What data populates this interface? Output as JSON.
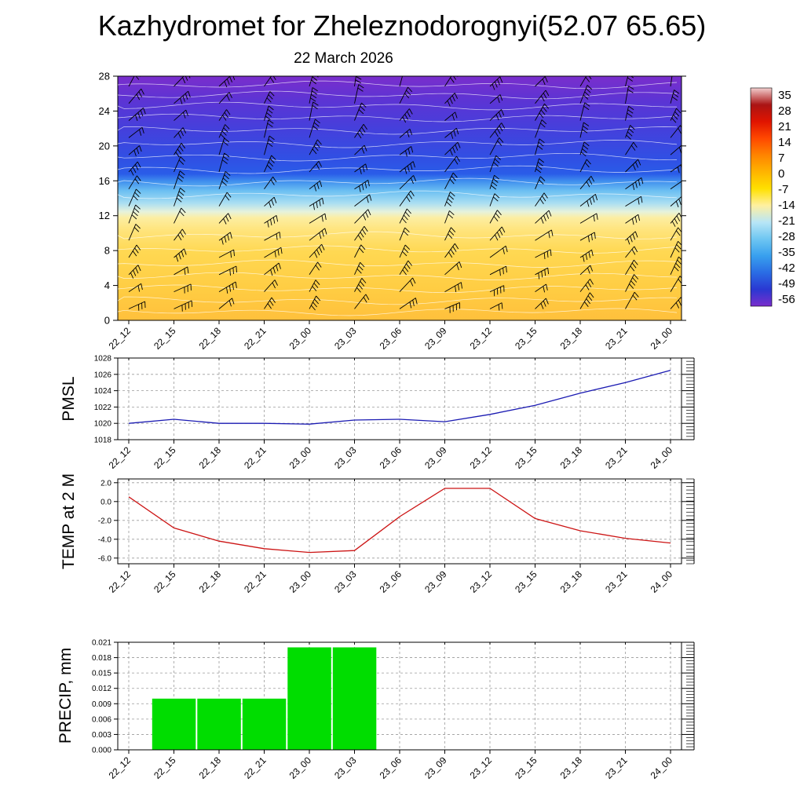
{
  "title": "Kazhydromet for Zheleznodorognyi(52.07 65.65)",
  "subtitle": "22 March 2026",
  "time_labels": [
    "22_12",
    "22_15",
    "22_18",
    "22_21",
    "23_00",
    "23_03",
    "23_06",
    "23_09",
    "23_12",
    "23_15",
    "23_18",
    "23_21",
    "24_00"
  ],
  "chart_data": [
    {
      "type": "heatmap",
      "name": "temperature-height-cross-section",
      "title": "22 March 2026",
      "overlay": "wind-barbs",
      "ylim": [
        0,
        28
      ],
      "y_ticks": [
        0,
        4,
        8,
        12,
        16,
        20,
        24,
        28
      ],
      "y_tick_labels": [
        "0",
        "4",
        "8",
        "12",
        "16",
        "20",
        "24",
        "28"
      ],
      "x": [
        "22_12",
        "22_15",
        "22_18",
        "22_21",
        "23_00",
        "23_03",
        "23_06",
        "23_09",
        "23_12",
        "23_15",
        "23_18",
        "23_21",
        "24_00"
      ],
      "colorbar_labels": [
        "35",
        "28",
        "21",
        "14",
        "7",
        "0",
        "-7",
        "-14",
        "-21",
        "-28",
        "-35",
        "-42",
        "-49",
        "-56"
      ],
      "colorbar_colors": [
        "#f2cece",
        "#aa1414",
        "#e01400",
        "#ff4800",
        "#ff8400",
        "#ffb400",
        "#ffe000",
        "#fff0a0",
        "#b8e6f6",
        "#6ec6f2",
        "#38a0ee",
        "#2a6ce4",
        "#2a38d2",
        "#7a2ecc"
      ],
      "fill_gradient": [
        {
          "pos": 0.0,
          "color": "#7a2ecc"
        },
        {
          "pos": 0.1,
          "color": "#5c34d4"
        },
        {
          "pos": 0.22,
          "color": "#4440dc"
        },
        {
          "pos": 0.34,
          "color": "#3050e4"
        },
        {
          "pos": 0.4,
          "color": "#2a5ce8"
        },
        {
          "pos": 0.43,
          "color": "#3f8eee"
        },
        {
          "pos": 0.47,
          "color": "#6cc0f2"
        },
        {
          "pos": 0.52,
          "color": "#aadef2"
        },
        {
          "pos": 0.555,
          "color": "#e6f2dc"
        },
        {
          "pos": 0.58,
          "color": "#fceea2"
        },
        {
          "pos": 0.63,
          "color": "#ffe47c"
        },
        {
          "pos": 0.72,
          "color": "#ffd852"
        },
        {
          "pos": 0.88,
          "color": "#ffcc42"
        },
        {
          "pos": 1.0,
          "color": "#ffc03c"
        }
      ]
    },
    {
      "type": "line",
      "name": "pmsl",
      "ylabel": "PMSL",
      "color": "#1a1ab2",
      "ylim": [
        1018,
        1028
      ],
      "y_ticks": [
        1018,
        1020,
        1022,
        1024,
        1026,
        1028
      ],
      "y_tick_labels": [
        "1018",
        "1020",
        "1022",
        "1024",
        "1026",
        "1028"
      ],
      "minor_tick_count": 25,
      "x": [
        "22_12",
        "22_15",
        "22_18",
        "22_21",
        "23_00",
        "23_03",
        "23_06",
        "23_09",
        "23_12",
        "23_15",
        "23_18",
        "23_21",
        "24_00"
      ],
      "values": [
        1020.0,
        1020.5,
        1020.0,
        1020.0,
        1019.9,
        1020.4,
        1020.5,
        1020.2,
        1021.1,
        1022.2,
        1023.7,
        1025.0,
        1026.5
      ]
    },
    {
      "type": "line",
      "name": "temp-2m",
      "ylabel": "TEMP at 2 M",
      "color": "#cc1414",
      "ylim": [
        -6.6,
        2.4
      ],
      "y_ticks": [
        2.0,
        0.0,
        -2.0,
        -4.0,
        -6.0
      ],
      "y_tick_labels": [
        "2.0",
        "0.0",
        "-2.0",
        "-4.0",
        "-6.0"
      ],
      "minor_tick_count": 23,
      "x": [
        "22_12",
        "22_15",
        "22_18",
        "22_21",
        "23_00",
        "23_03",
        "23_06",
        "23_09",
        "23_12",
        "23_15",
        "23_18",
        "23_21",
        "24_00"
      ],
      "values": [
        0.5,
        -2.8,
        -4.2,
        -5.0,
        -5.4,
        -5.2,
        -1.6,
        1.4,
        1.4,
        -1.8,
        -3.1,
        -3.9,
        -4.4
      ]
    },
    {
      "type": "bar",
      "name": "precip",
      "ylabel": "PRECIP, mm",
      "color": "#00dd00",
      "ylim": [
        0,
        0.021
      ],
      "y_ticks": [
        0.0,
        0.003,
        0.006,
        0.009,
        0.012,
        0.015,
        0.018,
        0.021
      ],
      "y_tick_labels": [
        "0.000",
        "0.003",
        "0.006",
        "0.009",
        "0.012",
        "0.015",
        "0.018",
        "0.021"
      ],
      "minor_tick_count": 35,
      "x": [
        "22_12",
        "22_15",
        "22_18",
        "22_21",
        "23_00",
        "23_03",
        "23_06",
        "23_09",
        "23_12",
        "23_15",
        "23_18",
        "23_21",
        "24_00"
      ],
      "bars": [
        {
          "time": "22_15",
          "value": 0.01
        },
        {
          "time": "22_18",
          "value": 0.01
        },
        {
          "time": "22_21",
          "value": 0.01
        },
        {
          "time": "23_00",
          "value": 0.02
        },
        {
          "time": "23_03",
          "value": 0.02
        }
      ]
    }
  ]
}
